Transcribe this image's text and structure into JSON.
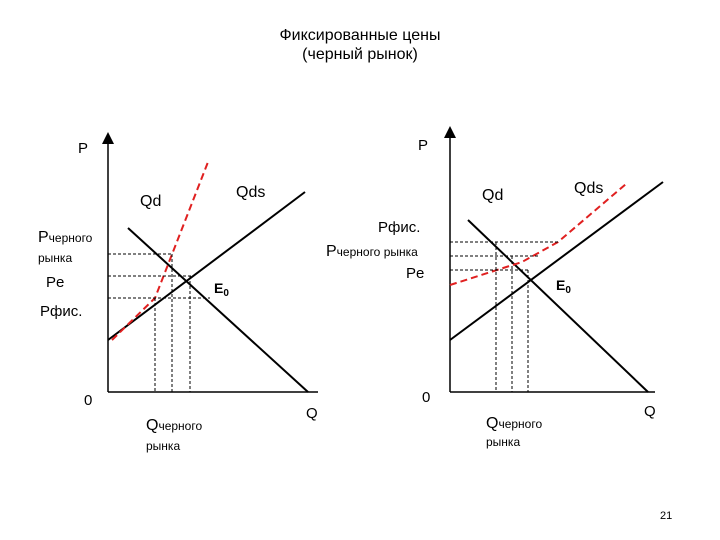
{
  "title": {
    "line1": "Фиксированные цены",
    "line2": "(черный рынок)"
  },
  "left_graph": {
    "y_axis_label": "P",
    "x_axis_label": "Q",
    "origin_label": "0",
    "demand_label": "Qd",
    "supply_label": "Qds",
    "equilibrium_label": "E",
    "equilibrium_subscript": "0",
    "p_black_label_big": "P",
    "p_black_label_small": "черного",
    "p_black_label_line2": "рынка",
    "pe_label": "Pe",
    "pfix_label": "Pфис.",
    "q_black_label_big": "Q",
    "q_black_label_small": "черного",
    "q_black_label_line2": "рынка"
  },
  "right_graph": {
    "y_axis_label": "P",
    "x_axis_label": "Q",
    "origin_label": "0",
    "demand_label": "Qd",
    "supply_label": "Qds",
    "equilibrium_label": "E",
    "equilibrium_subscript": "0",
    "pfix_label": "Pфис.",
    "p_black_label_big": "P",
    "p_black_label_small": "черного рынка",
    "pe_label": "Pe",
    "q_black_label_big": "Q",
    "q_black_label_small": "черного",
    "q_black_label_line2": "рынка"
  },
  "colors": {
    "curve": "#000000",
    "black_market_supply": "#e02020",
    "guide": "#000000"
  },
  "page_number": "21"
}
